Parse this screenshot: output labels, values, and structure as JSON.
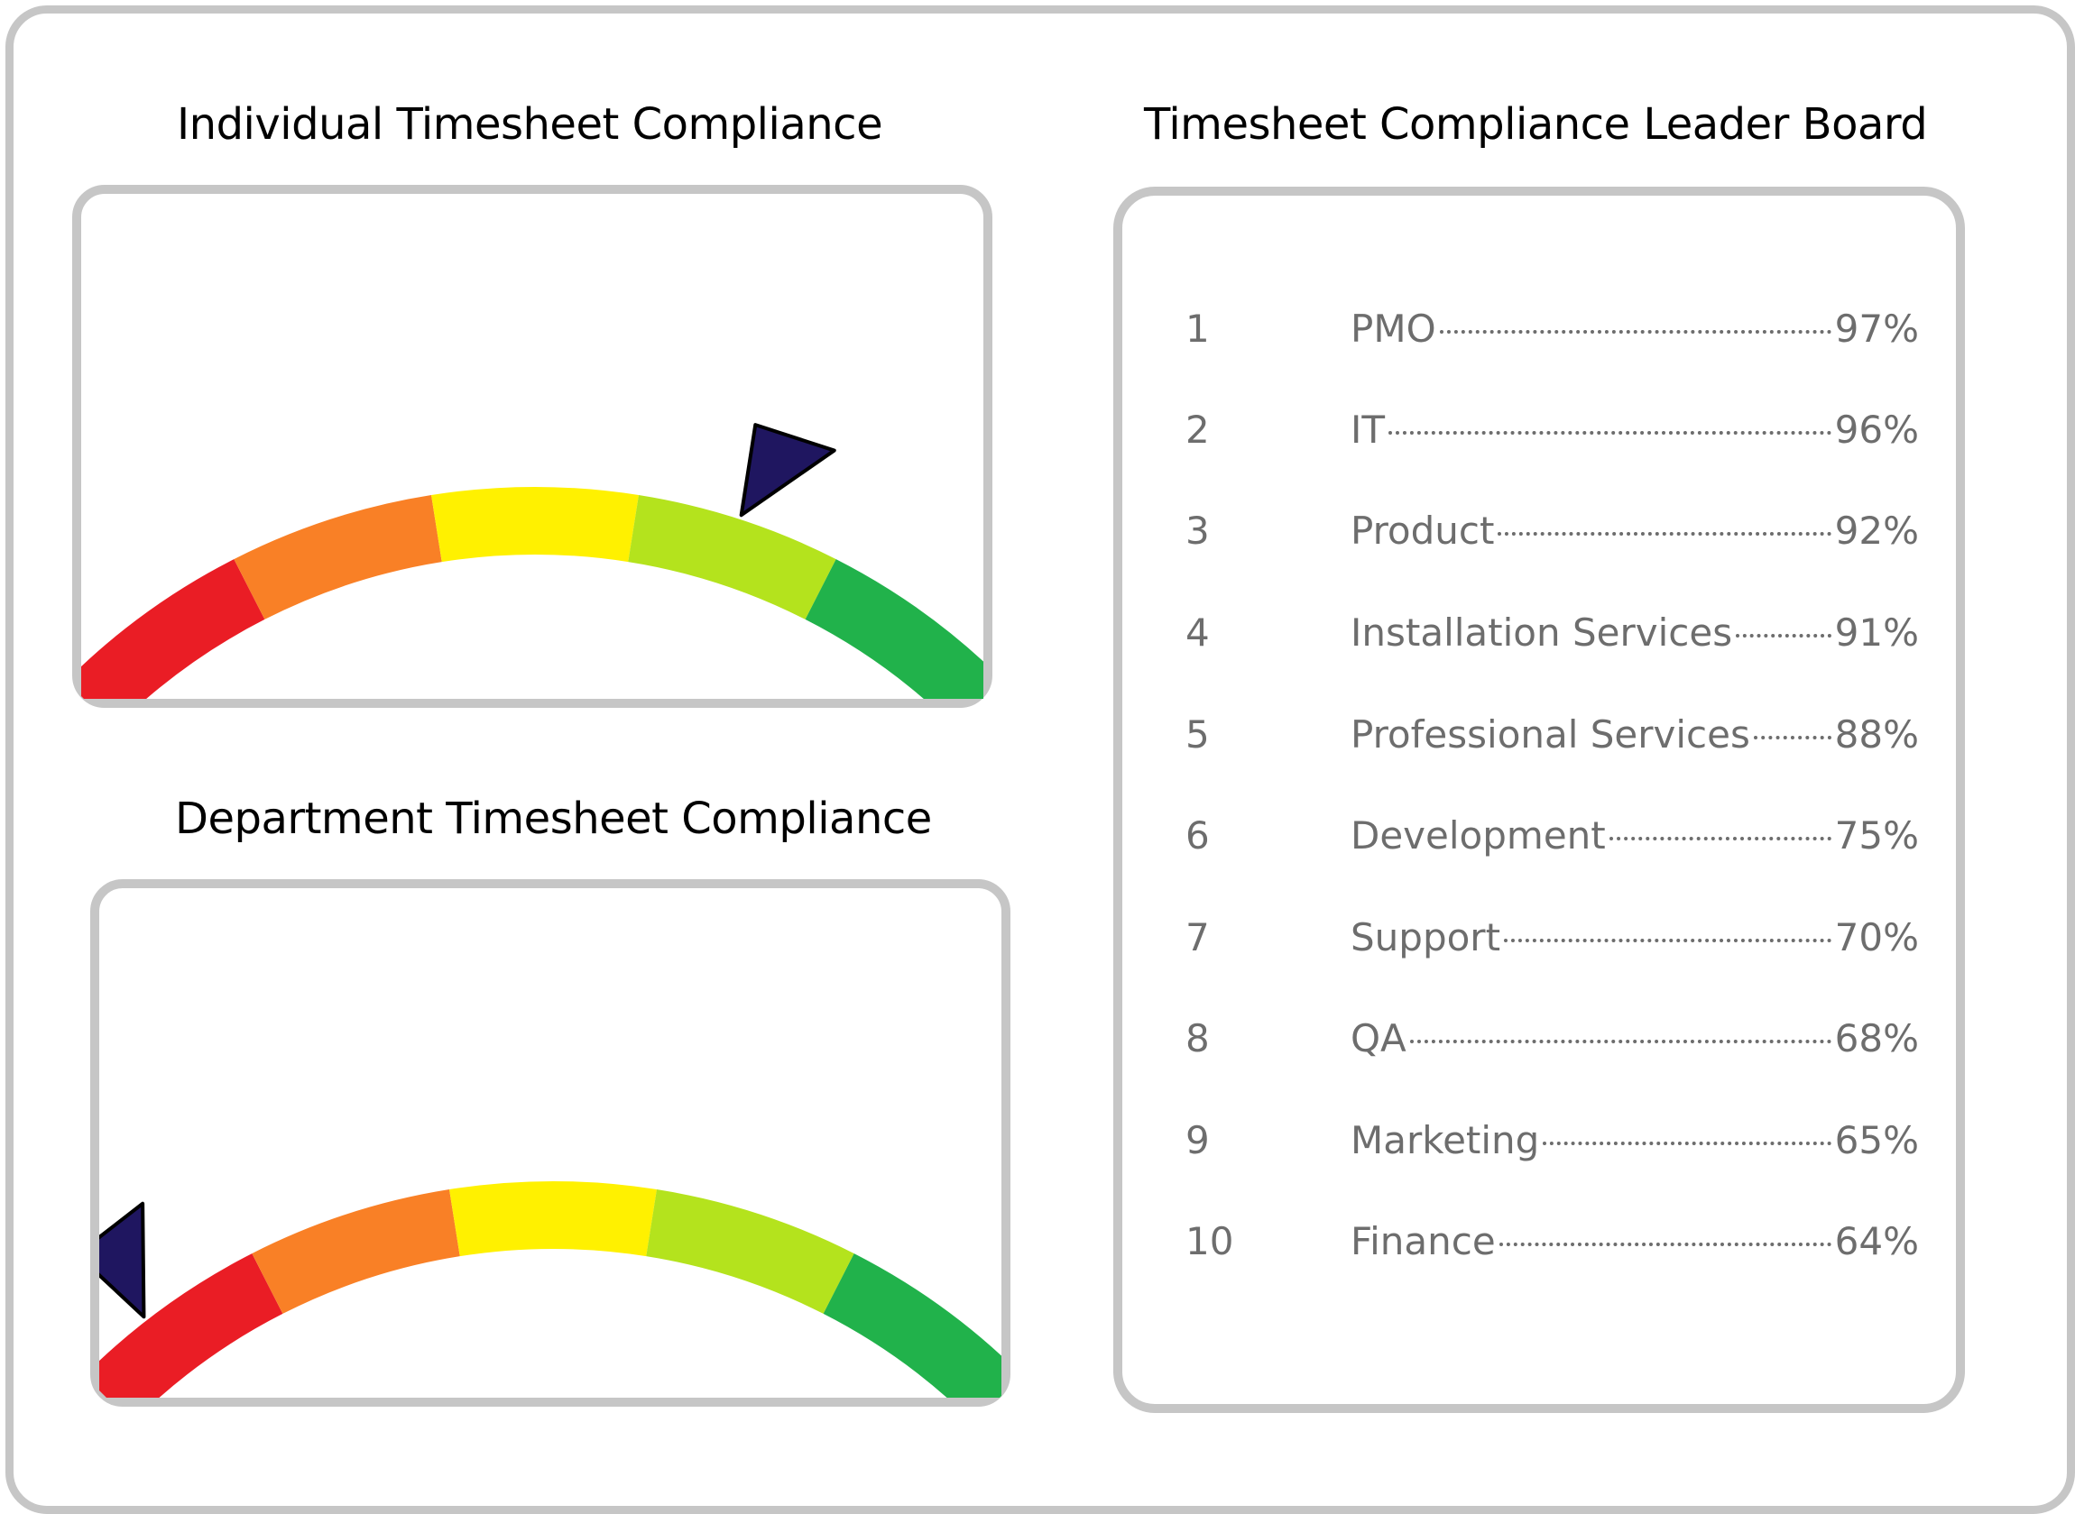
{
  "individual": {
    "title": "Individual Timesheet Compliance",
    "pointer_fraction": 0.7
  },
  "department": {
    "title": "Department Timesheet Compliance",
    "pointer_fraction": 0.08
  },
  "gauge_colors": [
    "#ea1d25",
    "#f98026",
    "#fff100",
    "#b4e31d",
    "#21b24b"
  ],
  "pointer_color": "#1f1660",
  "leaderboard": {
    "title": "Timesheet Compliance Leader Board",
    "rows": [
      {
        "rank": "1",
        "name": "PMO",
        "pct": "97%"
      },
      {
        "rank": "2",
        "name": "IT",
        "pct": "96%"
      },
      {
        "rank": "3",
        "name": "Product",
        "pct": "92%"
      },
      {
        "rank": "4",
        "name": "Installation Services",
        "pct": "91%"
      },
      {
        "rank": "5",
        "name": "Professional Services",
        "pct": "88%"
      },
      {
        "rank": "6",
        "name": "Development",
        "pct": "75%"
      },
      {
        "rank": "7",
        "name": "Support",
        "pct": "70%"
      },
      {
        "rank": "8",
        "name": "QA",
        "pct": "68%"
      },
      {
        "rank": "9",
        "name": "Marketing",
        "pct": "65%"
      },
      {
        "rank": "10",
        "name": "Finance",
        "pct": "64%"
      }
    ]
  }
}
